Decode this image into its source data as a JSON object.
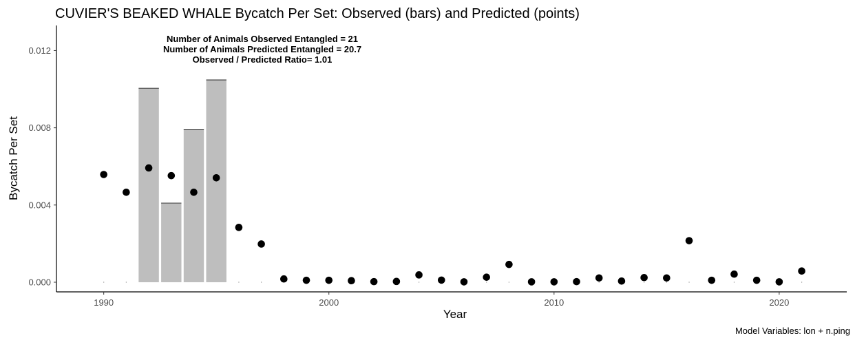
{
  "chart_data": {
    "type": "bar",
    "title": "CUVIER'S BEAKED WHALE Bycatch Per Set: Observed (bars) and Predicted (points)",
    "xlabel": "Year",
    "ylabel": "Bycatch Per Set",
    "xlim": [
      1987.9,
      2023.0
    ],
    "ylim": [
      -0.0005,
      0.0133
    ],
    "x_ticks": [
      1990,
      2000,
      2010,
      2020
    ],
    "x_tick_labels": [
      "1990",
      "2000",
      "2010",
      "2020"
    ],
    "y_ticks": [
      0.0,
      0.004,
      0.008,
      0.012
    ],
    "y_tick_labels": [
      "0.000",
      "0.004",
      "0.008",
      "0.012"
    ],
    "grid": false,
    "series": [
      {
        "kind": "bar",
        "color": "#bebebe",
        "x": [
          1990,
          1991,
          1992,
          1993,
          1994,
          1995,
          1996,
          1997,
          1998,
          1999,
          2000,
          2001,
          2002,
          2003,
          2004,
          2005,
          2006,
          2007,
          2008,
          2009,
          2010,
          2011,
          2012,
          2013,
          2014,
          2015,
          2016,
          2017,
          2018,
          2019,
          2020,
          2021
        ],
        "values": [
          0,
          0,
          0.01005,
          0.0041,
          0.0079,
          0.01048,
          0,
          0,
          0,
          0,
          0,
          0,
          0,
          0,
          0,
          0,
          0,
          0,
          0,
          0,
          0,
          0,
          0,
          0,
          0,
          0,
          0,
          0,
          0,
          0,
          0,
          0
        ]
      },
      {
        "kind": "point",
        "color": "#000000",
        "x": [
          1990,
          1991,
          1992,
          1993,
          1994,
          1995,
          1996,
          1997,
          1998,
          1999,
          2000,
          2001,
          2002,
          2003,
          2004,
          2005,
          2006,
          2007,
          2008,
          2009,
          2010,
          2011,
          2012,
          2013,
          2014,
          2015,
          2016,
          2017,
          2018,
          2019,
          2020,
          2021
        ],
        "values": [
          0.00558,
          0.00466,
          0.00592,
          0.00552,
          0.00466,
          0.00541,
          0.00284,
          0.00198,
          0.00017,
          0.0001,
          0.0001,
          8e-05,
          3e-05,
          4e-05,
          0.00038,
          0.00011,
          2e-05,
          0.00026,
          0.00092,
          2e-05,
          2e-05,
          3e-05,
          0.00022,
          6e-05,
          0.00024,
          0.00022,
          0.00215,
          0.0001,
          0.00042,
          0.0001,
          2e-05,
          0.00058
        ]
      }
    ],
    "annotations": [
      "Number of Animals Observed Entangled = 21",
      "Number of Animals Predicted Entangled = 20.7",
      "Observed / Predicted Ratio= 1.01"
    ],
    "caption": "Model Variables: lon + n.ping"
  }
}
